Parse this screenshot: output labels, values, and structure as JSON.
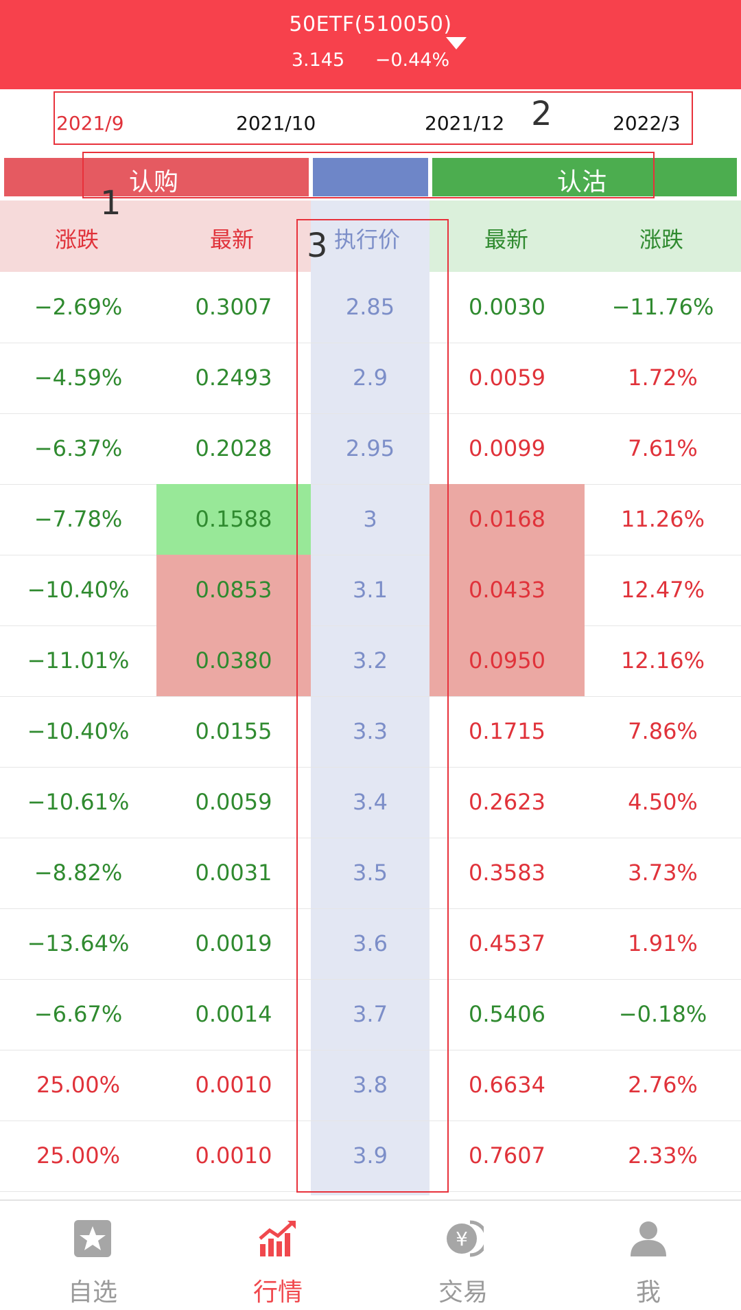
{
  "header": {
    "title": "50ETF(510050)",
    "price": "3.145",
    "change": "−0.44%"
  },
  "expiries": [
    {
      "label": "2021/9",
      "active": true
    },
    {
      "label": "2021/10",
      "active": false
    },
    {
      "label": "2021/12",
      "active": false
    },
    {
      "label": "2022/3",
      "active": false
    }
  ],
  "annotations": [
    "1",
    "2",
    "3"
  ],
  "type_bar": {
    "call": "认购",
    "put": "认沽"
  },
  "columns": {
    "call_change": "涨跌",
    "call_latest": "最新",
    "strike": "执行价",
    "put_latest": "最新",
    "put_change": "涨跌"
  },
  "rows": [
    {
      "call_change": "−2.69%",
      "call_latest": "0.3007",
      "strike": "2.85",
      "put_latest": "0.0030",
      "put_change": "−11.76%"
    },
    {
      "call_change": "−4.59%",
      "call_latest": "0.2493",
      "strike": "2.9",
      "put_latest": "0.0059",
      "put_change": "1.72%"
    },
    {
      "call_change": "−6.37%",
      "call_latest": "0.2028",
      "strike": "2.95",
      "put_latest": "0.0099",
      "put_change": "7.61%"
    },
    {
      "call_change": "−7.78%",
      "call_latest": "0.1588",
      "strike": "3",
      "put_latest": "0.0168",
      "put_change": "11.26%"
    },
    {
      "call_change": "−10.40%",
      "call_latest": "0.0853",
      "strike": "3.1",
      "put_latest": "0.0433",
      "put_change": "12.47%"
    },
    {
      "call_change": "−11.01%",
      "call_latest": "0.0380",
      "strike": "3.2",
      "put_latest": "0.0950",
      "put_change": "12.16%"
    },
    {
      "call_change": "−10.40%",
      "call_latest": "0.0155",
      "strike": "3.3",
      "put_latest": "0.1715",
      "put_change": "7.86%"
    },
    {
      "call_change": "−10.61%",
      "call_latest": "0.0059",
      "strike": "3.4",
      "put_latest": "0.2623",
      "put_change": "4.50%"
    },
    {
      "call_change": "−8.82%",
      "call_latest": "0.0031",
      "strike": "3.5",
      "put_latest": "0.3583",
      "put_change": "3.73%"
    },
    {
      "call_change": "−13.64%",
      "call_latest": "0.0019",
      "strike": "3.6",
      "put_latest": "0.4537",
      "put_change": "1.91%"
    },
    {
      "call_change": "−6.67%",
      "call_latest": "0.0014",
      "strike": "3.7",
      "put_latest": "0.5406",
      "put_change": "−0.18%"
    },
    {
      "call_change": "25.00%",
      "call_latest": "0.0010",
      "strike": "3.8",
      "put_latest": "0.6634",
      "put_change": "2.76%"
    },
    {
      "call_change": "25.00%",
      "call_latest": "0.0010",
      "strike": "3.9",
      "put_latest": "0.7607",
      "put_change": "2.33%"
    }
  ],
  "tabbar": [
    {
      "label": "自选",
      "icon": "star-icon",
      "active": false
    },
    {
      "label": "行情",
      "icon": "market-chart-icon",
      "active": true
    },
    {
      "label": "交易",
      "icon": "yen-coin-icon",
      "active": false
    },
    {
      "label": "我",
      "icon": "user-icon",
      "active": false
    }
  ],
  "colors": {
    "header": "#f7414c",
    "up": "#e0323a",
    "down": "#2f8a2f",
    "strike": "#7c8ec8",
    "call_bar": "#e55a61",
    "put_bar": "#4cad4f"
  }
}
